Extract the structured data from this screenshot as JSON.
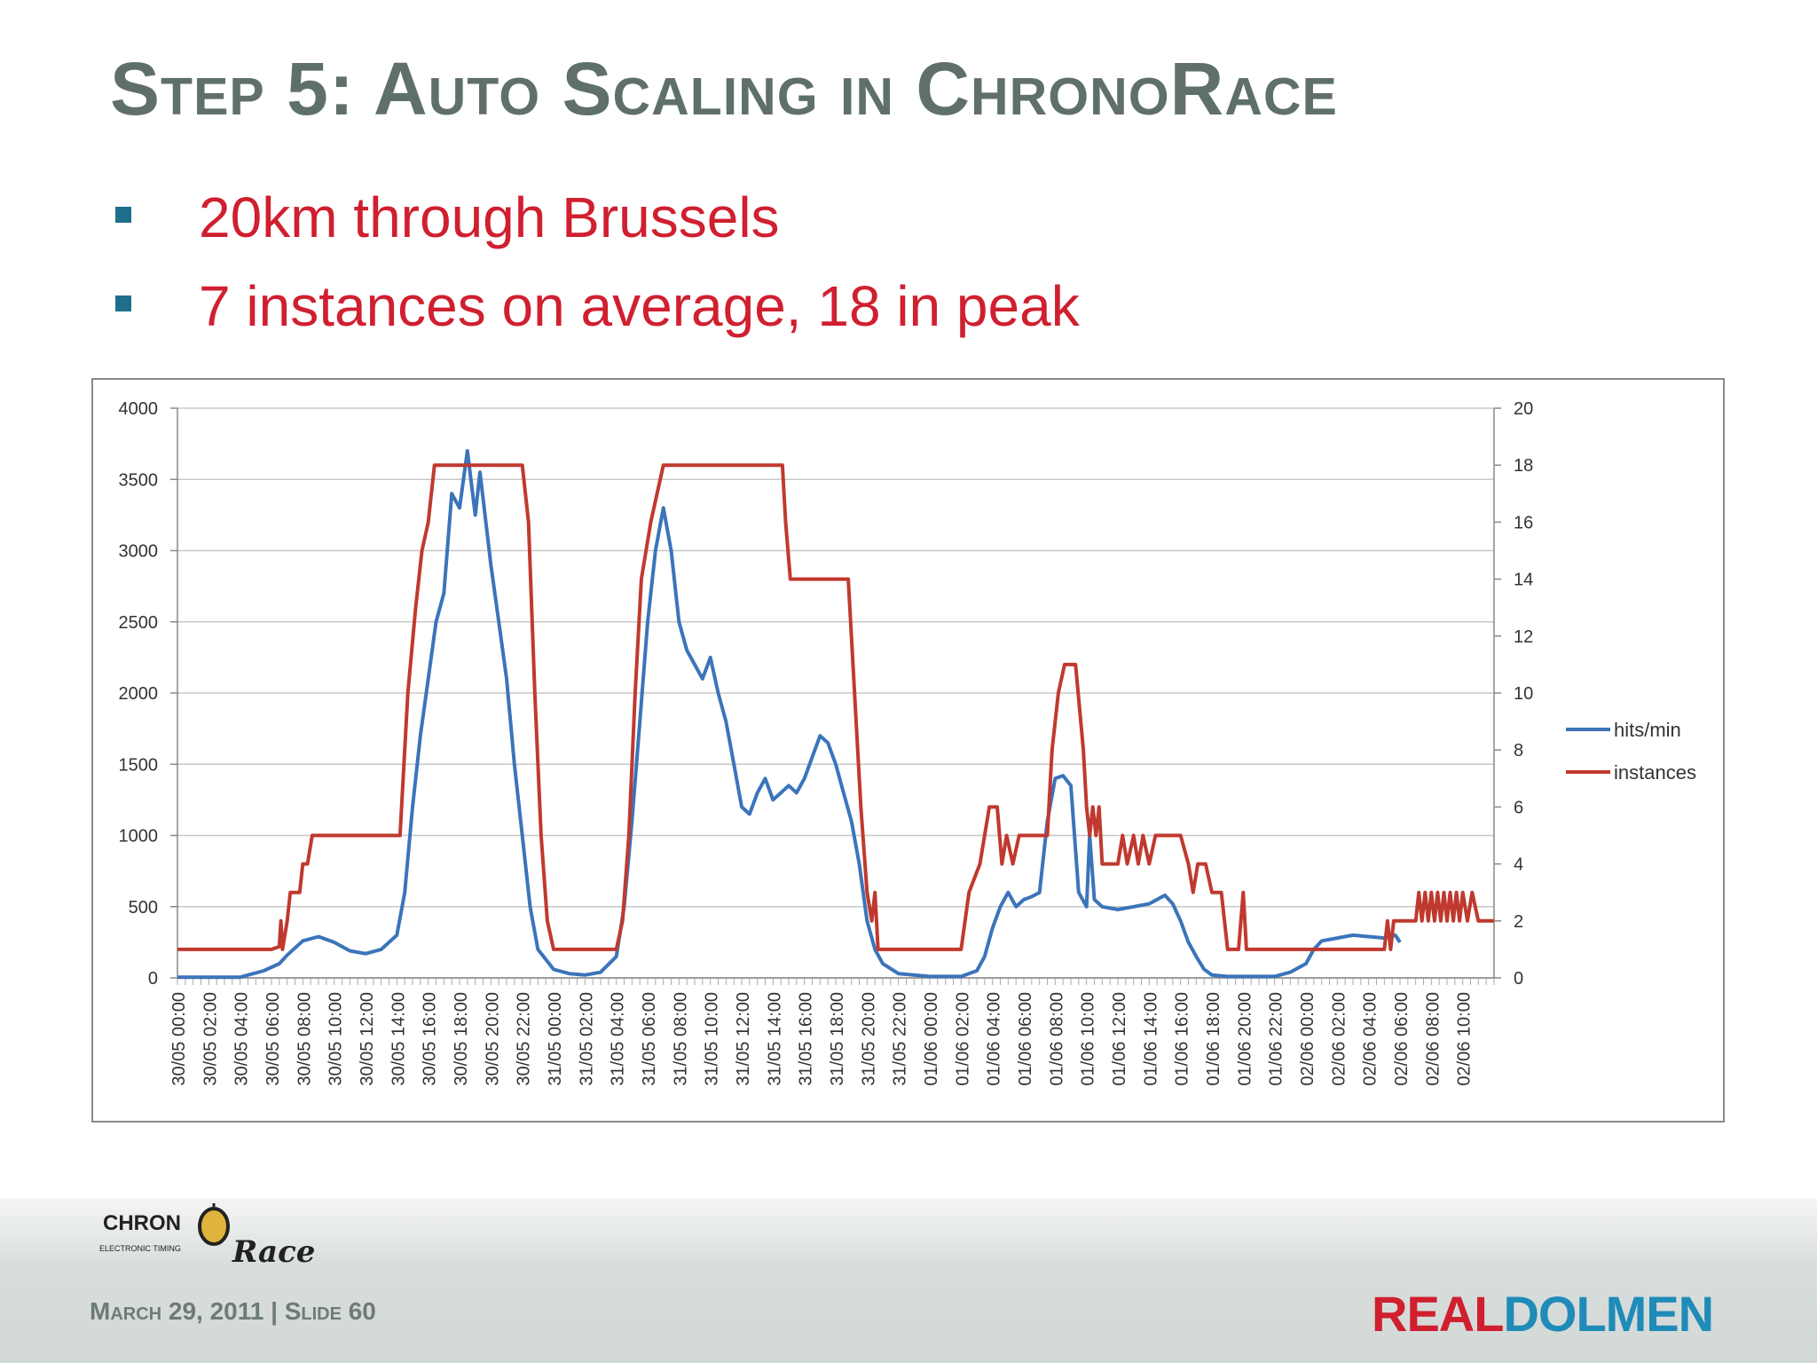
{
  "slide": {
    "title": "Step 5: Auto Scaling in ChronoRace",
    "bullets": [
      "20km through Brussels",
      "7 instances on average, 18 in peak"
    ],
    "footer": "March 29, 2011 | Slide 60",
    "logo_left": {
      "main": "CHRON",
      "sub": "ELECTRONIC TIMING",
      "script": "Race"
    },
    "logo_right": {
      "part1": "REAL",
      "part2": "DOLMEN"
    }
  },
  "colors": {
    "title": "#5f706b",
    "bullet_text": "#d01f2f",
    "bullet_marker": "#1f6e8c",
    "hits": "#3b74ba",
    "instances": "#c0392f",
    "grid": "#c8c8c8"
  },
  "chart_data": {
    "type": "line",
    "x_tick_labels": [
      "30/05 00:00",
      "30/05 02:00",
      "30/05 04:00",
      "30/05 06:00",
      "30/05 08:00",
      "30/05 10:00",
      "30/05 12:00",
      "30/05 14:00",
      "30/05 16:00",
      "30/05 18:00",
      "30/05 20:00",
      "30/05 22:00",
      "31/05 00:00",
      "31/05 02:00",
      "31/05 04:00",
      "31/05 06:00",
      "31/05 08:00",
      "31/05 10:00",
      "31/05 12:00",
      "31/05 14:00",
      "31/05 16:00",
      "31/05 18:00",
      "31/05 20:00",
      "31/05 22:00",
      "01/06 00:00",
      "01/06 02:00",
      "01/06 04:00",
      "01/06 06:00",
      "01/06 08:00",
      "01/06 10:00",
      "01/06 12:00",
      "01/06 14:00",
      "01/06 16:00",
      "01/06 18:00",
      "01/06 20:00",
      "01/06 22:00",
      "02/06 00:00",
      "02/06 02:00",
      "02/06 04:00",
      "02/06 06:00",
      "02/06 08:00",
      "02/06 10:00"
    ],
    "x_hours_range": [
      0,
      84
    ],
    "y_left": {
      "ticks": [
        "0",
        "500",
        "1000",
        "1500",
        "2000",
        "2500",
        "3000",
        "3500",
        "4000"
      ],
      "min": 0,
      "max": 4000
    },
    "y_right": {
      "ticks": [
        "0",
        "2",
        "4",
        "6",
        "8",
        "10",
        "12",
        "14",
        "16",
        "18",
        "20"
      ],
      "min": 0,
      "max": 20
    },
    "legend": [
      "hits/min",
      "instances"
    ],
    "series": [
      {
        "name": "hits/min",
        "axis": "left",
        "points": [
          [
            0,
            5
          ],
          [
            4,
            5
          ],
          [
            5.5,
            50
          ],
          [
            6.5,
            100
          ],
          [
            7,
            160
          ],
          [
            8,
            260
          ],
          [
            9,
            290
          ],
          [
            10,
            250
          ],
          [
            11,
            190
          ],
          [
            12,
            170
          ],
          [
            13,
            200
          ],
          [
            14,
            300
          ],
          [
            14.5,
            600
          ],
          [
            15,
            1200
          ],
          [
            15.5,
            1700
          ],
          [
            16,
            2100
          ],
          [
            16.5,
            2500
          ],
          [
            17,
            2700
          ],
          [
            17.5,
            3400
          ],
          [
            18,
            3300
          ],
          [
            18.5,
            3700
          ],
          [
            19,
            3250
          ],
          [
            19.3,
            3550
          ],
          [
            20,
            2900
          ],
          [
            20.5,
            2500
          ],
          [
            21,
            2100
          ],
          [
            21.5,
            1500
          ],
          [
            22,
            1000
          ],
          [
            22.5,
            500
          ],
          [
            23,
            200
          ],
          [
            24,
            60
          ],
          [
            25,
            30
          ],
          [
            26,
            20
          ],
          [
            27,
            40
          ],
          [
            28,
            150
          ],
          [
            28.5,
            500
          ],
          [
            29,
            1100
          ],
          [
            29.5,
            1800
          ],
          [
            30,
            2500
          ],
          [
            30.5,
            3000
          ],
          [
            31,
            3300
          ],
          [
            31.5,
            3000
          ],
          [
            32,
            2500
          ],
          [
            32.5,
            2300
          ],
          [
            33,
            2200
          ],
          [
            33.5,
            2100
          ],
          [
            34,
            2250
          ],
          [
            34.5,
            2000
          ],
          [
            35,
            1800
          ],
          [
            35.5,
            1500
          ],
          [
            36,
            1200
          ],
          [
            36.5,
            1150
          ],
          [
            37,
            1300
          ],
          [
            37.5,
            1400
          ],
          [
            38,
            1250
          ],
          [
            38.5,
            1300
          ],
          [
            39,
            1350
          ],
          [
            39.5,
            1300
          ],
          [
            40,
            1400
          ],
          [
            40.5,
            1550
          ],
          [
            41,
            1700
          ],
          [
            41.5,
            1650
          ],
          [
            42,
            1500
          ],
          [
            42.5,
            1300
          ],
          [
            43,
            1100
          ],
          [
            43.5,
            800
          ],
          [
            44,
            400
          ],
          [
            44.5,
            200
          ],
          [
            45,
            100
          ],
          [
            46,
            30
          ],
          [
            48,
            10
          ],
          [
            50,
            10
          ],
          [
            51,
            50
          ],
          [
            51.5,
            150
          ],
          [
            52,
            350
          ],
          [
            52.5,
            500
          ],
          [
            53,
            600
          ],
          [
            53.5,
            500
          ],
          [
            54,
            550
          ],
          [
            54.5,
            570
          ],
          [
            55,
            600
          ],
          [
            55.5,
            1100
          ],
          [
            56,
            1400
          ],
          [
            56.5,
            1420
          ],
          [
            57,
            1350
          ],
          [
            57.5,
            600
          ],
          [
            58,
            500
          ],
          [
            58.2,
            1000
          ],
          [
            58.5,
            550
          ],
          [
            59,
            500
          ],
          [
            60,
            480
          ],
          [
            61,
            500
          ],
          [
            62,
            520
          ],
          [
            63,
            580
          ],
          [
            63.5,
            520
          ],
          [
            64,
            400
          ],
          [
            64.5,
            250
          ],
          [
            65,
            150
          ],
          [
            65.5,
            60
          ],
          [
            66,
            20
          ],
          [
            67,
            10
          ],
          [
            70,
            10
          ],
          [
            71,
            40
          ],
          [
            72,
            100
          ],
          [
            72.5,
            200
          ],
          [
            73,
            260
          ],
          [
            74,
            280
          ],
          [
            75,
            300
          ],
          [
            76,
            290
          ],
          [
            77,
            280
          ],
          [
            77.7,
            300
          ],
          [
            78,
            250
          ]
        ]
      },
      {
        "name": "instances",
        "axis": "right",
        "points": [
          [
            0,
            1
          ],
          [
            6,
            1
          ],
          [
            6.5,
            1.1
          ],
          [
            6.6,
            2
          ],
          [
            6.7,
            1
          ],
          [
            7,
            2
          ],
          [
            7.2,
            3
          ],
          [
            7.8,
            3
          ],
          [
            8,
            4
          ],
          [
            8.3,
            4
          ],
          [
            8.6,
            5
          ],
          [
            14.2,
            5
          ],
          [
            14.7,
            10
          ],
          [
            15.2,
            13
          ],
          [
            15.6,
            15
          ],
          [
            16,
            16
          ],
          [
            16.4,
            18
          ],
          [
            22,
            18
          ],
          [
            22.4,
            16
          ],
          [
            22.8,
            10
          ],
          [
            23.2,
            5
          ],
          [
            23.6,
            2
          ],
          [
            24,
            1
          ],
          [
            28,
            1
          ],
          [
            28.4,
            2
          ],
          [
            28.8,
            5
          ],
          [
            29.2,
            10
          ],
          [
            29.6,
            14
          ],
          [
            30.2,
            16
          ],
          [
            31,
            18
          ],
          [
            38.6,
            18
          ],
          [
            38.8,
            16
          ],
          [
            39.1,
            14
          ],
          [
            42.8,
            14
          ],
          [
            43.2,
            10
          ],
          [
            43.6,
            6
          ],
          [
            44,
            3
          ],
          [
            44.3,
            2
          ],
          [
            44.5,
            3
          ],
          [
            44.7,
            1
          ],
          [
            50,
            1
          ],
          [
            50.5,
            3
          ],
          [
            51.2,
            4
          ],
          [
            51.8,
            6
          ],
          [
            52.3,
            6
          ],
          [
            52.6,
            4
          ],
          [
            52.9,
            5
          ],
          [
            53.3,
            4
          ],
          [
            53.7,
            5
          ],
          [
            55.5,
            5
          ],
          [
            55.8,
            8
          ],
          [
            56.2,
            10
          ],
          [
            56.6,
            11
          ],
          [
            57.3,
            11
          ],
          [
            57.8,
            8
          ],
          [
            58,
            6
          ],
          [
            58.2,
            5
          ],
          [
            58.4,
            6
          ],
          [
            58.6,
            5
          ],
          [
            58.8,
            6
          ],
          [
            59,
            4
          ],
          [
            60,
            4
          ],
          [
            60.3,
            5
          ],
          [
            60.6,
            4
          ],
          [
            61,
            5
          ],
          [
            61.3,
            4
          ],
          [
            61.6,
            5
          ],
          [
            62,
            4
          ],
          [
            62.4,
            5
          ],
          [
            64,
            5
          ],
          [
            64.5,
            4
          ],
          [
            64.8,
            3
          ],
          [
            65.1,
            4
          ],
          [
            65.6,
            4
          ],
          [
            66,
            3
          ],
          [
            66.6,
            3
          ],
          [
            67,
            1
          ],
          [
            67.7,
            1
          ],
          [
            68,
            3
          ],
          [
            68.2,
            1
          ],
          [
            77,
            1
          ],
          [
            77.2,
            2
          ],
          [
            77.4,
            1
          ],
          [
            77.6,
            2
          ],
          [
            79,
            2
          ],
          [
            79.2,
            3
          ],
          [
            79.4,
            2
          ],
          [
            79.6,
            3
          ],
          [
            79.8,
            2
          ],
          [
            80,
            3
          ],
          [
            80.2,
            2
          ],
          [
            80.4,
            3
          ],
          [
            80.6,
            2
          ],
          [
            80.8,
            3
          ],
          [
            81,
            2
          ],
          [
            81.2,
            3
          ],
          [
            81.4,
            2
          ],
          [
            81.6,
            3
          ],
          [
            81.8,
            2
          ],
          [
            82,
            3
          ],
          [
            82.3,
            2
          ],
          [
            82.6,
            3
          ],
          [
            83,
            2
          ],
          [
            84,
            2
          ]
        ]
      }
    ]
  }
}
